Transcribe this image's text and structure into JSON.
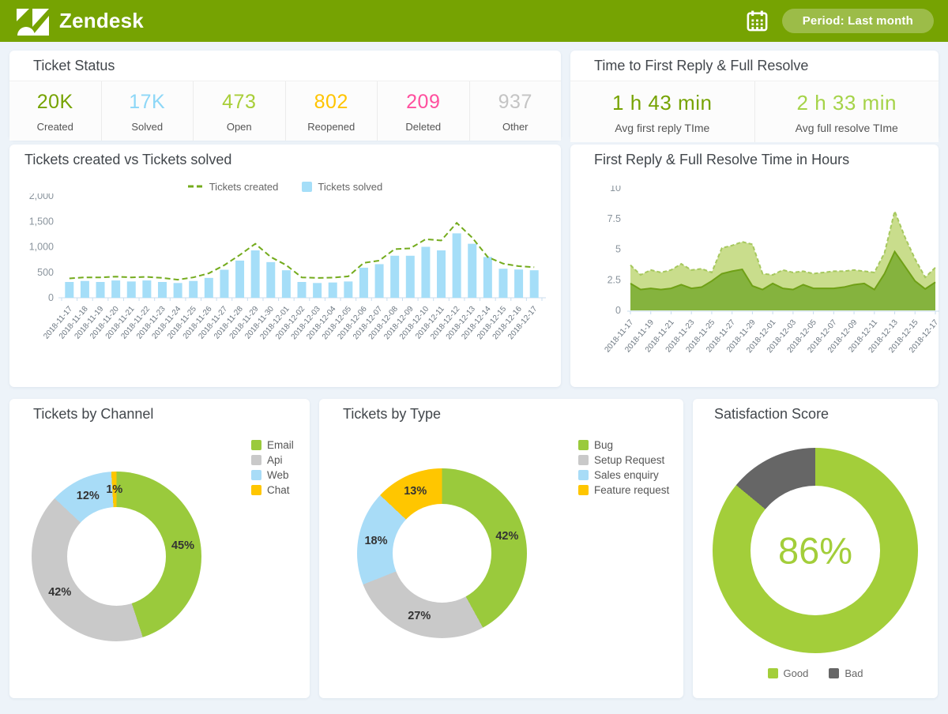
{
  "header": {
    "brand": "Zendesk",
    "period_label": "Period: Last month",
    "calendar_icon": "calendar-icon"
  },
  "colors": {
    "header_bg": "#76a302",
    "page_bg": "#edf3f9",
    "accent_green_dark": "#76a302",
    "accent_green_light": "#a5d348",
    "bar_blue": "#a5def8",
    "line_green": "#74ab1d"
  },
  "ticket_status": {
    "title": "Ticket Status",
    "stats": [
      {
        "value": "20K",
        "label": "Created",
        "color": "#76a302"
      },
      {
        "value": "17K",
        "label": "Solved",
        "color": "#8dd7f7"
      },
      {
        "value": "473",
        "label": "Open",
        "color": "#a8ce38"
      },
      {
        "value": "802",
        "label": "Reopened",
        "color": "#ffc400"
      },
      {
        "value": "209",
        "label": "Deleted",
        "color": "#ff4f9e"
      },
      {
        "value": "937",
        "label": "Other",
        "color": "#c4c4c4"
      }
    ]
  },
  "reply_resolve": {
    "title": "Time to First Reply & Full Resolve",
    "stats": [
      {
        "value": "1 h 43 min",
        "label": "Avg first reply TIme",
        "color": "#76a302"
      },
      {
        "value": "2 h 33 min",
        "label": "Avg full resolve TIme",
        "color": "#a5d348"
      }
    ]
  },
  "chart_data": [
    {
      "type": "bar",
      "title": "Tickets created vs Tickets solved",
      "ylim": [
        0,
        2000
      ],
      "ytick_values": [
        0,
        500,
        1000,
        1500,
        2000
      ],
      "ytick_labels": [
        "0",
        "500",
        "1,000",
        "1,500",
        "2,000"
      ],
      "xtick_every": 1,
      "categories": [
        "2018-11-17",
        "2018-11-18",
        "2018-11-19",
        "2018-11-20",
        "2018-11-21",
        "2018-11-22",
        "2018-11-23",
        "2018-11-24",
        "2018-11-25",
        "2018-11-26",
        "2018-11-27",
        "2018-11-28",
        "2018-11-29",
        "2018-11-30",
        "2018-12-01",
        "2018-12-02",
        "2018-12-03",
        "2018-12-04",
        "2018-12-05",
        "2018-12-06",
        "2018-12-07",
        "2018-12-08",
        "2018-12-09",
        "2018-12-10",
        "2018-12-11",
        "2018-12-12",
        "2018-12-13",
        "2018-12-14",
        "2018-12-15",
        "2018-12-16",
        "2018-12-17"
      ],
      "legend": [
        {
          "label": "Tickets created",
          "swatch": "dash",
          "color": "#74ab1d"
        },
        {
          "label": "Tickets solved",
          "swatch": "square",
          "color": "#a5def8"
        }
      ],
      "series": [
        {
          "name": "Tickets solved",
          "kind": "bar",
          "color": "#a5def8",
          "values": [
            310,
            330,
            310,
            340,
            320,
            340,
            310,
            290,
            330,
            390,
            550,
            730,
            930,
            700,
            540,
            310,
            290,
            300,
            320,
            590,
            660,
            825,
            825,
            1000,
            930,
            1265,
            1060,
            800,
            570,
            555,
            540
          ]
        },
        {
          "name": "Tickets created",
          "kind": "line",
          "dashed": true,
          "color": "#74ab1d",
          "values": [
            380,
            400,
            400,
            415,
            400,
            410,
            390,
            355,
            400,
            480,
            640,
            840,
            1060,
            800,
            640,
            400,
            390,
            395,
            420,
            685,
            730,
            955,
            970,
            1150,
            1125,
            1470,
            1180,
            800,
            670,
            620,
            600
          ]
        }
      ]
    },
    {
      "type": "area",
      "title": "First Reply & Full Resolve Time in Hours",
      "ylim": [
        0,
        10
      ],
      "ytick_values": [
        0,
        2.5,
        5,
        7.5,
        10
      ],
      "ytick_labels": [
        "0",
        "2.5",
        "5",
        "7.5",
        "10"
      ],
      "xtick_every": 2,
      "categories": [
        "2018-11-17",
        "2018-11-18",
        "2018-11-19",
        "2018-11-20",
        "2018-11-21",
        "2018-11-22",
        "2018-11-23",
        "2018-11-24",
        "2018-11-25",
        "2018-11-26",
        "2018-11-27",
        "2018-11-28",
        "2018-11-29",
        "2018-11-30",
        "2018-12-01",
        "2018-12-02",
        "2018-12-03",
        "2018-12-04",
        "2018-12-05",
        "2018-12-06",
        "2018-12-07",
        "2018-12-08",
        "2018-12-09",
        "2018-12-10",
        "2018-12-11",
        "2018-12-12",
        "2018-12-13",
        "2018-12-14",
        "2018-12-15",
        "2018-12-16",
        "2018-12-17"
      ],
      "series": [
        {
          "name": "Full Resolve Time",
          "kind": "area",
          "dashed": true,
          "fill": "#c9dd8c",
          "stroke": "#a6c85e",
          "values": [
            3.7,
            2.9,
            3.3,
            3.1,
            3.3,
            3.8,
            3.3,
            3.4,
            3.1,
            5.1,
            5.3,
            5.6,
            5.4,
            3.0,
            2.9,
            3.3,
            3.1,
            3.2,
            3.0,
            3.1,
            3.2,
            3.2,
            3.3,
            3.2,
            3.1,
            4.7,
            8.1,
            6.0,
            4.2,
            2.7,
            3.5
          ]
        },
        {
          "name": "First Reply Time",
          "kind": "area",
          "dashed": false,
          "fill": "#85b33e",
          "stroke": "#6fa016",
          "values": [
            2.2,
            1.7,
            1.8,
            1.7,
            1.8,
            2.1,
            1.8,
            1.9,
            2.4,
            3.0,
            3.2,
            3.35,
            2.0,
            1.7,
            2.2,
            1.8,
            1.7,
            2.1,
            1.8,
            1.8,
            1.8,
            1.9,
            2.1,
            2.2,
            1.7,
            3.0,
            4.8,
            3.6,
            2.4,
            1.75,
            2.3
          ]
        }
      ]
    },
    {
      "type": "pie",
      "title": "Tickets by Channel",
      "show_slice_labels": true,
      "slices": [
        {
          "label": "Email",
          "value": 45,
          "color": "#9aca3c"
        },
        {
          "label": "Api",
          "value": 42,
          "color": "#c9c9c9"
        },
        {
          "label": "Web",
          "value": 12,
          "color": "#a8dcf7"
        },
        {
          "label": "Chat",
          "value": 1,
          "color": "#ffc600"
        }
      ]
    },
    {
      "type": "pie",
      "title": "Tickets by Type",
      "show_slice_labels": true,
      "slices": [
        {
          "label": "Bug",
          "value": 42,
          "color": "#9aca3c"
        },
        {
          "label": "Setup Request",
          "value": 27,
          "color": "#c9c9c9"
        },
        {
          "label": "Sales enquiry",
          "value": 18,
          "color": "#a8dcf7"
        },
        {
          "label": "Feature request",
          "value": 13,
          "color": "#ffc600"
        }
      ]
    },
    {
      "type": "pie",
      "title": "Satisfaction Score",
      "show_slice_labels": false,
      "center_label": "86%",
      "center_color": "#a3ce3a",
      "slices": [
        {
          "label": "Good",
          "value": 86,
          "color": "#a3ce3a"
        },
        {
          "label": "Bad",
          "value": 14,
          "color": "#666666"
        }
      ]
    }
  ]
}
